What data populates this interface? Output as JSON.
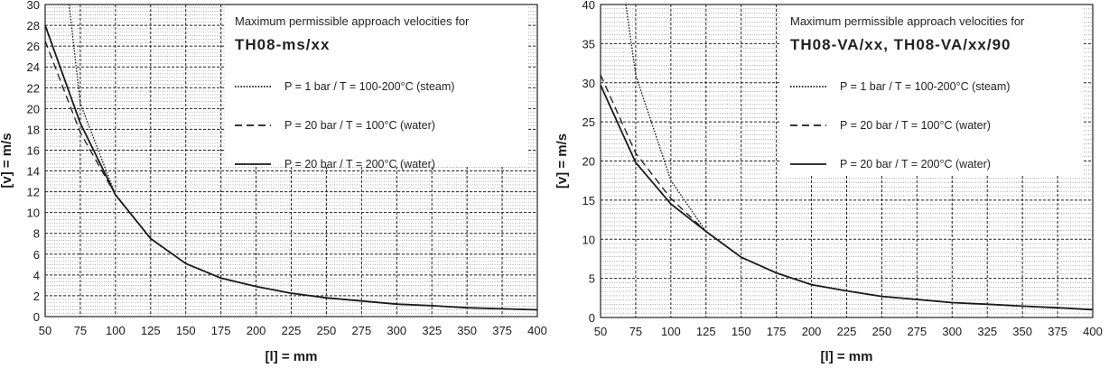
{
  "chart_data": [
    {
      "type": "line",
      "title": "Maximum permissible approach velocities for",
      "subtitle": "TH08-ms/xx",
      "xlabel": "[l] = mm",
      "ylabel": "[v] = m/s",
      "xlim": [
        50,
        400
      ],
      "ylim": [
        0,
        30
      ],
      "xticks": [
        "50",
        "75",
        "100",
        "125",
        "150",
        "175",
        "200",
        "225",
        "250",
        "275",
        "300",
        "325",
        "350",
        "375",
        "400"
      ],
      "yticks": [
        "0",
        "2",
        "4",
        "6",
        "8",
        "10",
        "12",
        "14",
        "16",
        "18",
        "20",
        "22",
        "24",
        "26",
        "28",
        "30"
      ],
      "legend_position": "top-right",
      "series": [
        {
          "name": "P =   1 bar  /  T = 100-200°C  (steam)",
          "style": "dotted",
          "x": [
            67,
            75,
            100,
            125,
            150,
            175,
            200,
            225,
            250,
            275,
            300,
            325,
            350,
            375,
            400
          ],
          "y": [
            30,
            20.5,
            11.7,
            7.5,
            5.1,
            3.7,
            2.9,
            2.25,
            1.8,
            1.5,
            1.2,
            1.05,
            0.85,
            0.75,
            0.65
          ]
        },
        {
          "name": "P = 20 bar  /  T = 100°C  (water)",
          "style": "dashed",
          "x": [
            50,
            75,
            100,
            125,
            150,
            175,
            200,
            225,
            250,
            275,
            300,
            325,
            350,
            375,
            400
          ],
          "y": [
            26.5,
            17.7,
            11.7,
            7.5,
            5.1,
            3.7,
            2.9,
            2.25,
            1.8,
            1.5,
            1.2,
            1.05,
            0.85,
            0.75,
            0.65
          ]
        },
        {
          "name": "P = 20 bar  /  T = 200°C  (water)",
          "style": "solid",
          "x": [
            50,
            75,
            100,
            125,
            150,
            175,
            200,
            225,
            250,
            275,
            300,
            325,
            350,
            375,
            400
          ],
          "y": [
            28,
            18.6,
            11.7,
            7.5,
            5.1,
            3.7,
            2.9,
            2.25,
            1.8,
            1.5,
            1.2,
            1.05,
            0.85,
            0.75,
            0.65
          ]
        }
      ]
    },
    {
      "type": "line",
      "title": "Maximum permissible approach velocities for",
      "subtitle": "TH08-VA/xx, TH08-VA/xx/90",
      "xlabel": "[l] = mm",
      "ylabel": "[v] = m/s",
      "xlim": [
        50,
        400
      ],
      "ylim": [
        0,
        40
      ],
      "xticks": [
        "50",
        "75",
        "100",
        "125",
        "150",
        "175",
        "200",
        "225",
        "250",
        "275",
        "300",
        "325",
        "350",
        "375",
        "400"
      ],
      "yticks": [
        "0",
        "5",
        "10",
        "15",
        "20",
        "25",
        "30",
        "35",
        "40"
      ],
      "legend_position": "top-right",
      "series": [
        {
          "name": "P =   1 bar  /  T = 100-200°C  (steam)",
          "style": "dotted",
          "x": [
            68,
            75,
            100,
            125,
            150,
            175,
            200,
            225,
            250,
            275,
            300,
            325,
            350,
            375,
            400
          ],
          "y": [
            40,
            31,
            17.5,
            11,
            7.7,
            5.7,
            4.2,
            3.4,
            2.7,
            2.3,
            1.9,
            1.7,
            1.45,
            1.25,
            1.0
          ]
        },
        {
          "name": "P = 20 bar  /  T = 100°C  (water)",
          "style": "dashed",
          "x": [
            50,
            75,
            100,
            125,
            150,
            175,
            200,
            225,
            250,
            275,
            300,
            325,
            350,
            375,
            400
          ],
          "y": [
            31,
            21,
            15.2,
            11,
            7.7,
            5.7,
            4.2,
            3.4,
            2.7,
            2.3,
            1.9,
            1.7,
            1.45,
            1.25,
            1.0
          ]
        },
        {
          "name": "P = 20 bar  /  T = 200°C  (water)",
          "style": "solid",
          "x": [
            50,
            75,
            100,
            125,
            150,
            175,
            200,
            225,
            250,
            275,
            300,
            325,
            350,
            375,
            400
          ],
          "y": [
            29.7,
            19.8,
            14.5,
            11,
            7.7,
            5.7,
            4.2,
            3.4,
            2.7,
            2.3,
            1.9,
            1.7,
            1.45,
            1.25,
            1.0
          ]
        }
      ]
    }
  ]
}
